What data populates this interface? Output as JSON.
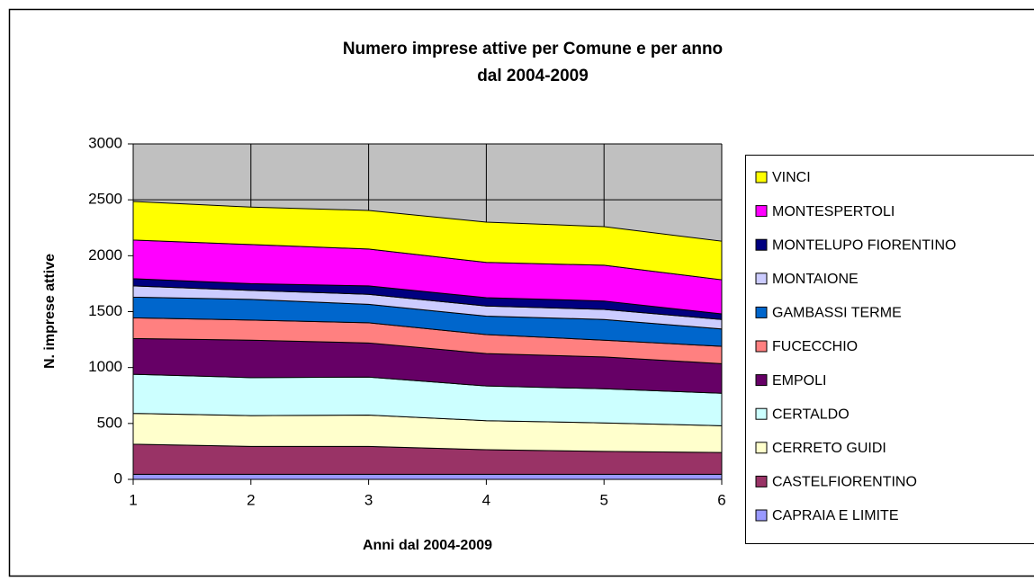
{
  "chart_data": {
    "type": "stacked-area",
    "title": [
      "Numero imprese attive per Comune e per anno",
      "dal 2004-2009"
    ],
    "x_label": "Anni dal 2004-2009",
    "y_label": "N. imprese attive",
    "x": [
      1,
      2,
      3,
      4,
      5,
      6
    ],
    "xlim": [
      1,
      6
    ],
    "xticks": [
      1,
      2,
      3,
      4,
      5,
      6
    ],
    "ylim": [
      0,
      3000
    ],
    "yticks": [
      0,
      500,
      1000,
      1500,
      2000,
      2500,
      3000
    ],
    "grid": true,
    "plot_background": "#c0c0c0",
    "legend": "right",
    "series": [
      {
        "name": "CAPRAIA E LIMITE",
        "color": "#9999ff",
        "values": [
          45,
          45,
          45,
          45,
          45,
          45
        ]
      },
      {
        "name": "CASTELFIORENTINO",
        "color": "#993366",
        "values": [
          270,
          250,
          250,
          220,
          205,
          195
        ]
      },
      {
        "name": "CERRETO GUIDI",
        "color": "#ffffcc",
        "values": [
          275,
          275,
          280,
          260,
          255,
          240
        ]
      },
      {
        "name": "CERTALDO",
        "color": "#ccffff",
        "values": [
          350,
          340,
          340,
          310,
          305,
          290
        ]
      },
      {
        "name": "EMPOLI",
        "color": "#660066",
        "values": [
          320,
          335,
          305,
          290,
          285,
          265
        ]
      },
      {
        "name": "FUCECCHIO",
        "color": "#ff8080",
        "values": [
          185,
          180,
          180,
          170,
          150,
          155
        ]
      },
      {
        "name": "GAMBASSI TERME",
        "color": "#0066cc",
        "values": [
          185,
          185,
          165,
          165,
          185,
          155
        ]
      },
      {
        "name": "MONTAIONE",
        "color": "#ccccff",
        "values": [
          100,
          80,
          90,
          90,
          90,
          85
        ]
      },
      {
        "name": "MONTELUPO FIORENTINO",
        "color": "#000080",
        "values": [
          65,
          60,
          75,
          75,
          75,
          50
        ]
      },
      {
        "name": "MONTESPERTOLI",
        "color": "#ff00ff",
        "values": [
          345,
          350,
          330,
          315,
          320,
          305
        ]
      },
      {
        "name": "VINCI",
        "color": "#ffff00",
        "values": [
          345,
          335,
          345,
          360,
          345,
          345
        ]
      }
    ]
  }
}
